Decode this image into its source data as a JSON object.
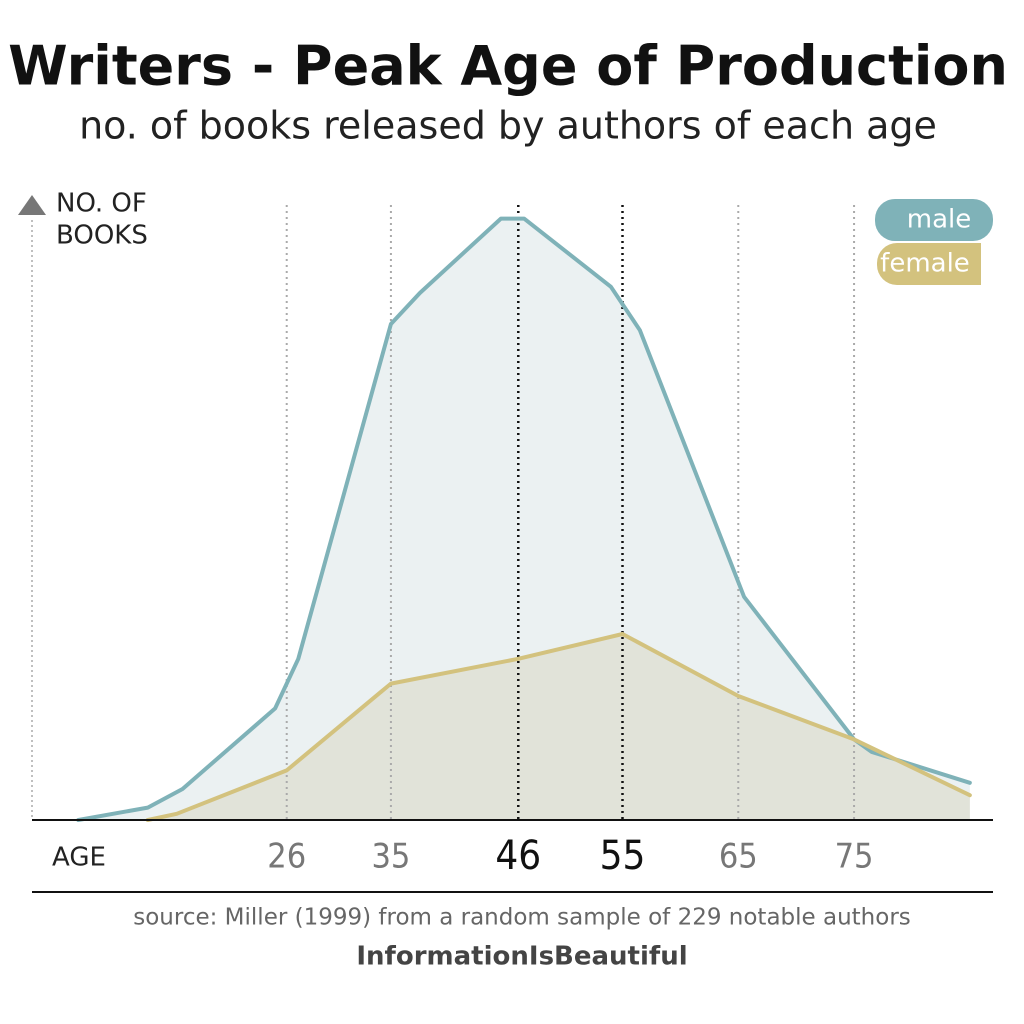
{
  "chart_data": {
    "type": "line",
    "title": "Writers - Peak Age of Production",
    "subtitle": "no. of books released by authors of each age",
    "y_label": [
      "NO. OF",
      "BOOKS"
    ],
    "x_label": "AGE",
    "source": "source: Miller (1999) from a random sample of 229 notable authors",
    "credit": "InformationIsBeautiful",
    "xlim": [
      4,
      87
    ],
    "ylim": [
      0,
      100
    ],
    "xticks": [
      26,
      35,
      46,
      55,
      65,
      75
    ],
    "emphasized_xticks": [
      46,
      55
    ],
    "grid": true,
    "legend": "upper right",
    "series": [
      {
        "name": "male",
        "color": "#7fb2b8",
        "fill": "#e8eef0",
        "x": [
          8,
          14,
          17,
          25,
          27,
          35,
          37.5,
          44.5,
          46.5,
          54,
          56.5,
          65.5,
          75,
          76.5,
          85
        ],
        "values": [
          0,
          2,
          5,
          18,
          26,
          80,
          85,
          97,
          97,
          86,
          79,
          36,
          13,
          11,
          6
        ]
      },
      {
        "name": "female",
        "color": "#d3c27e",
        "fill": "#dfe1d5",
        "x": [
          14,
          16.5,
          26,
          35,
          46,
          55,
          65,
          75,
          85
        ],
        "values": [
          0,
          1,
          8,
          22,
          26,
          30,
          20,
          13,
          4
        ]
      }
    ]
  }
}
